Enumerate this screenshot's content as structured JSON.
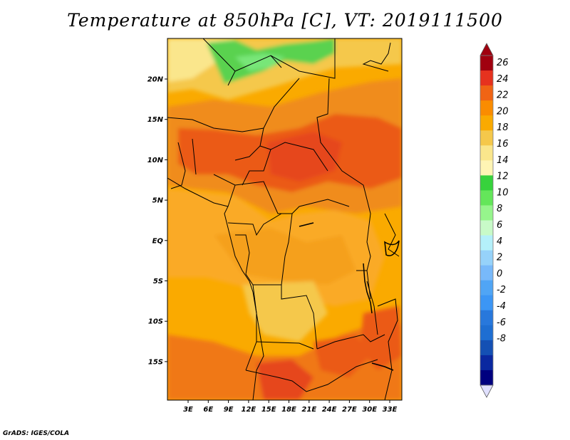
{
  "title": "Temperature at 850hPa [C], VT: 2019111500",
  "credit": "GrADS: IGES/COLA",
  "map": {
    "lat_labels": [
      "20N",
      "15N",
      "10N",
      "5N",
      "EQ",
      "5S",
      "10S",
      "15S"
    ],
    "lon_labels": [
      "3E",
      "6E",
      "9E",
      "12E",
      "15E",
      "18E",
      "21E",
      "24E",
      "27E",
      "30E",
      "33E"
    ]
  },
  "colorbar": {
    "labels": [
      "26",
      "24",
      "22",
      "20",
      "18",
      "16",
      "14",
      "12",
      "10",
      "8",
      "6",
      "4",
      "2",
      "0",
      "-2",
      "-4",
      "-6",
      "-8"
    ],
    "colors": [
      "#a0000f",
      "#e6321e",
      "#f06414",
      "#fa8c00",
      "#faaa00",
      "#f5c84b",
      "#fae68c",
      "#fff5b4",
      "#37d23c",
      "#64e65a",
      "#96f58c",
      "#c8fac8",
      "#b4f0fa",
      "#96d2fa",
      "#78b9fa",
      "#50a5f5",
      "#3c96f5",
      "#2878dc",
      "#1e6ed2",
      "#1450b4",
      "#0a28a0",
      "#00007f"
    ]
  }
}
